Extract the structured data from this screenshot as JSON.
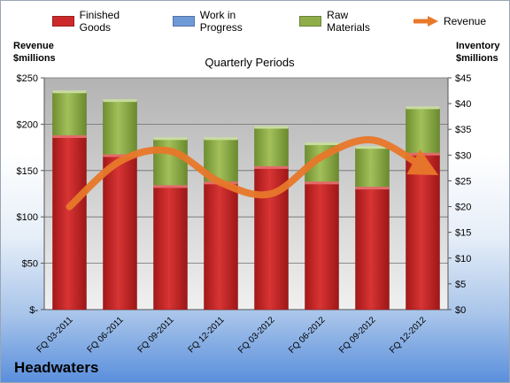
{
  "chart_data": {
    "type": "bar",
    "title": "Quarterly Periods",
    "categories": [
      "FQ 03-2011",
      "FQ 06-2011",
      "FQ 09-2011",
      "FQ 12-2011",
      "FQ 03-2012",
      "FQ 06-2012",
      "FQ 09-2012",
      "FQ 12-2012"
    ],
    "series": [
      {
        "name": "Finished Goods",
        "axis": "right",
        "stack": true,
        "color": "#cc2a2a",
        "values": [
          33.5,
          29.8,
          23.8,
          24.5,
          27.5,
          24.5,
          23.5,
          30.1
        ]
      },
      {
        "name": "Work in Progress",
        "axis": "right",
        "stack": true,
        "color": "#6f9ad8",
        "values": [
          0,
          0,
          0,
          0,
          0,
          0,
          0,
          0
        ]
      },
      {
        "name": "Raw Materials",
        "axis": "right",
        "stack": true,
        "color": "#8fae4a",
        "values": [
          8.7,
          10.7,
          9.3,
          8.6,
          7.8,
          7.6,
          7.9,
          9.0
        ]
      },
      {
        "name": "Revenue",
        "axis": "left",
        "type": "line",
        "color": "#e8782a",
        "values": [
          111,
          160,
          171,
          137,
          125,
          165,
          183,
          154
        ]
      }
    ],
    "ylabel_left": "Revenue\n$millions",
    "ylabel_right": "Inventory\n$millions",
    "ylim_left": [
      0,
      250
    ],
    "ylim_right": [
      0,
      45
    ],
    "yticks_left": [
      "$-",
      "$50",
      "$100",
      "$150",
      "$200",
      "$250"
    ],
    "yticks_right": [
      "$0",
      "$5",
      "$10",
      "$15",
      "$20",
      "$25",
      "$30",
      "$35",
      "$40",
      "$45"
    ],
    "grid": true,
    "legend_position": "top"
  },
  "labels": {
    "ylabel_left_line1": "Revenue",
    "ylabel_left_line2": "$millions",
    "ylabel_right_line1": "Inventory",
    "ylabel_right_line2": "$millions",
    "company": "Headwaters"
  }
}
